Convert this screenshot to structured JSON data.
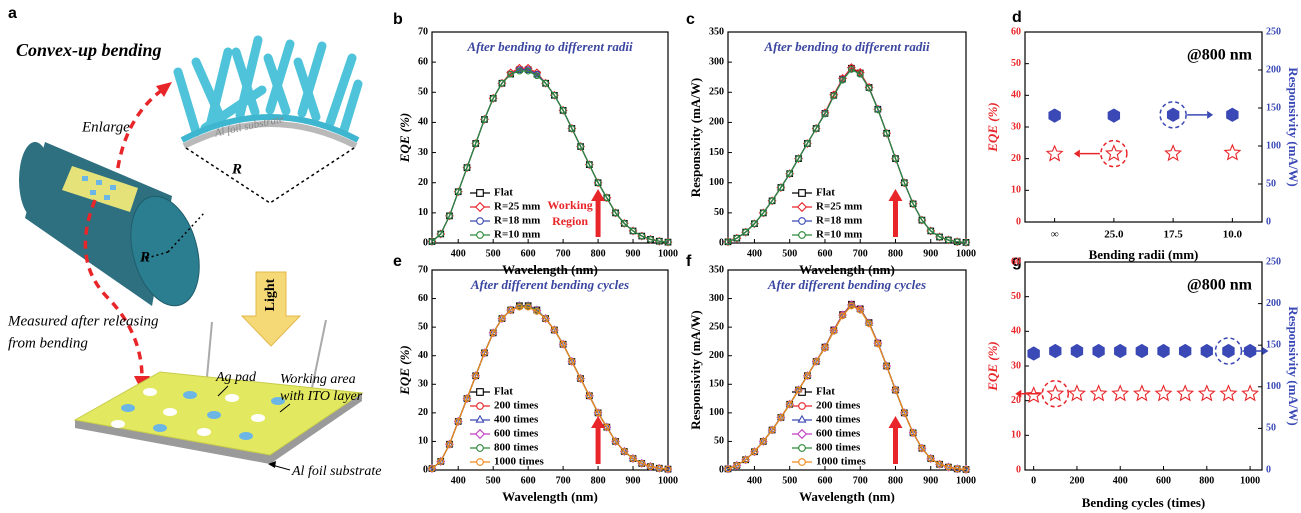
{
  "panel_a": {
    "letter": "a",
    "title": "Convex-up bending",
    "enlarge": "Enlarge",
    "substrate_top": "Al foil substrate",
    "radius_top": "R",
    "radius_cyl": "R",
    "light": "Light",
    "measured": [
      "Measured after releasing",
      "from bending"
    ],
    "ag_pad": "Ag pad",
    "working_area": [
      "Working area",
      "with ITO layer"
    ],
    "substrate_bottom": "Al foil substrate"
  },
  "chart_data": [
    {
      "panel": "b",
      "type": "line",
      "subtitle": "After bending to different radii",
      "x_label": "Wavelength (nm)",
      "y_label": "EQE (%)",
      "x": [
        325,
        350,
        375,
        400,
        425,
        450,
        475,
        500,
        525,
        550,
        575,
        600,
        625,
        650,
        675,
        700,
        725,
        750,
        775,
        800,
        825,
        850,
        875,
        900,
        925,
        950,
        975,
        1000
      ],
      "xlim": [
        325,
        1000
      ],
      "xticks": [
        400,
        500,
        600,
        700,
        800,
        900,
        1000
      ],
      "ylim": [
        0,
        70
      ],
      "yticks": [
        0,
        10,
        20,
        30,
        40,
        50,
        60,
        70
      ],
      "arrow_x": 800,
      "annotation": [
        "Working",
        "Region"
      ],
      "series": [
        {
          "name": "Flat",
          "color": "#000000",
          "marker": "square",
          "values": [
            0.5,
            3,
            9,
            17,
            25,
            33,
            41,
            48,
            53,
            56,
            57.5,
            57.5,
            56,
            53,
            49,
            44,
            38,
            32,
            26,
            20,
            15,
            10,
            6.5,
            4,
            2.3,
            1.2,
            0.6,
            0.3
          ]
        },
        {
          "name": "R=25 mm",
          "color": "#e8262a",
          "marker": "diamond",
          "values": [
            0.5,
            3,
            9,
            17,
            25,
            33,
            41,
            48,
            53,
            56.5,
            58,
            58,
            56.5,
            53,
            49,
            44,
            38,
            32,
            26,
            20,
            15,
            10,
            6.5,
            4,
            2.3,
            1.2,
            0.6,
            0.3
          ]
        },
        {
          "name": "R=18 mm",
          "color": "#3a49b5",
          "marker": "circle",
          "values": [
            0.5,
            3,
            9,
            17,
            25,
            33,
            41,
            48,
            53,
            56,
            57.5,
            57.5,
            56,
            53,
            49,
            44,
            38,
            32,
            26,
            20,
            15,
            10,
            6.5,
            4,
            2.3,
            1.2,
            0.6,
            0.3
          ]
        },
        {
          "name": "R=10 mm",
          "color": "#2a8a3a",
          "marker": "circle",
          "values": [
            0.5,
            3,
            9,
            17,
            25,
            33,
            41,
            48,
            53,
            56,
            57,
            57,
            55.5,
            53,
            49,
            44,
            38,
            32,
            26,
            20,
            15,
            10,
            6.5,
            4,
            2.3,
            1.2,
            0.6,
            0.3
          ]
        }
      ]
    },
    {
      "panel": "c",
      "type": "line",
      "subtitle": "After bending to different radii",
      "x_label": "Wavelength (nm)",
      "y_label": "Responsivity (mA/W)",
      "x": [
        325,
        350,
        375,
        400,
        425,
        450,
        475,
        500,
        525,
        550,
        575,
        600,
        625,
        650,
        675,
        700,
        725,
        750,
        775,
        800,
        825,
        850,
        875,
        900,
        925,
        950,
        975,
        1000
      ],
      "xlim": [
        325,
        1000
      ],
      "xticks": [
        400,
        500,
        600,
        700,
        800,
        900,
        1000
      ],
      "ylim": [
        0,
        350
      ],
      "yticks": [
        0,
        50,
        100,
        150,
        200,
        250,
        300,
        350
      ],
      "arrow_x": 800,
      "series": [
        {
          "name": "Flat",
          "color": "#000000",
          "marker": "square",
          "values": [
            2,
            8,
            18,
            32,
            50,
            70,
            92,
            115,
            140,
            165,
            190,
            215,
            245,
            272,
            290,
            282,
            258,
            222,
            182,
            140,
            100,
            65,
            38,
            20,
            10,
            5,
            2,
            1
          ]
        },
        {
          "name": "R=25 mm",
          "color": "#e8262a",
          "marker": "diamond",
          "values": [
            2,
            8,
            18,
            32,
            50,
            70,
            92,
            115,
            140,
            165,
            190,
            216,
            246,
            273,
            291,
            283,
            258,
            222,
            182,
            140,
            100,
            65,
            38,
            20,
            10,
            5,
            2,
            1
          ]
        },
        {
          "name": "R=18 mm",
          "color": "#3a49b5",
          "marker": "circle",
          "values": [
            2,
            8,
            18,
            32,
            50,
            70,
            92,
            115,
            140,
            165,
            190,
            215,
            244,
            271,
            288,
            280,
            257,
            222,
            182,
            140,
            100,
            65,
            38,
            20,
            10,
            5,
            2,
            1
          ]
        },
        {
          "name": "R=10 mm",
          "color": "#2a8a3a",
          "marker": "circle",
          "values": [
            2,
            8,
            18,
            32,
            50,
            70,
            92,
            115,
            140,
            165,
            190,
            214,
            244,
            270,
            288,
            280,
            257,
            221,
            182,
            140,
            100,
            65,
            38,
            20,
            10,
            5,
            2,
            1
          ]
        }
      ]
    },
    {
      "panel": "d",
      "type": "scatter",
      "annotation": "@800 nm",
      "x_label": "Bending radii (mm)",
      "y_label": "EQE (%)",
      "y2_label": "Responsivity (mA/W)",
      "categories": [
        "∞",
        "25.0",
        "17.5",
        "10.0"
      ],
      "ylim": [
        0,
        60
      ],
      "yticks": [
        0,
        10,
        20,
        30,
        40,
        50,
        60
      ],
      "y2lim": [
        0,
        250
      ],
      "y2ticks": [
        0,
        50,
        100,
        150,
        200,
        250
      ],
      "series": [
        {
          "color": "#e8262a",
          "marker": "star",
          "values": [
            21.5,
            21.6,
            21.6,
            21.8
          ]
        },
        {
          "color": "#3a49b5",
          "marker": "hexagon",
          "axis": "y2",
          "values": [
            140,
            140,
            141,
            141
          ]
        }
      ]
    },
    {
      "panel": "e",
      "type": "line",
      "subtitle": "After different bending cycles",
      "x_label": "Wavelength (nm)",
      "y_label": "EQE (%)",
      "x": [
        325,
        350,
        375,
        400,
        425,
        450,
        475,
        500,
        525,
        550,
        575,
        600,
        625,
        650,
        675,
        700,
        725,
        750,
        775,
        800,
        825,
        850,
        875,
        900,
        925,
        950,
        975,
        1000
      ],
      "xlim": [
        325,
        1000
      ],
      "xticks": [
        400,
        500,
        600,
        700,
        800,
        900,
        1000
      ],
      "ylim": [
        0,
        70
      ],
      "yticks": [
        0,
        10,
        20,
        30,
        40,
        50,
        60,
        70
      ],
      "arrow_x": 800,
      "series": [
        {
          "name": "Flat",
          "color": "#000000",
          "marker": "square",
          "values": [
            0.5,
            3,
            9,
            17,
            25,
            33,
            41,
            48,
            53,
            56,
            57.5,
            57.5,
            56,
            53,
            49,
            44,
            38,
            32,
            26,
            20,
            15,
            10,
            6.5,
            4,
            2.3,
            1.2,
            0.6,
            0.3
          ]
        },
        {
          "name": "200 times",
          "color": "#e8262a",
          "marker": "circle",
          "values": [
            0.5,
            3,
            9,
            17,
            25,
            33,
            41,
            48,
            53,
            56,
            57.5,
            57.5,
            56,
            53,
            49,
            44,
            38,
            32,
            26,
            20,
            15,
            10,
            6.5,
            4,
            2.3,
            1.2,
            0.6,
            0.3
          ]
        },
        {
          "name": "400 times",
          "color": "#3a49b5",
          "marker": "triangle",
          "values": [
            0.5,
            3,
            9,
            17,
            25,
            33,
            41,
            48,
            53,
            56,
            57.5,
            57.5,
            56,
            53,
            49,
            44,
            38,
            32,
            26,
            20,
            15,
            10,
            6.5,
            4,
            2.3,
            1.2,
            0.6,
            0.3
          ]
        },
        {
          "name": "600 times",
          "color": "#c23cc2",
          "marker": "diamond",
          "values": [
            0.5,
            3,
            9,
            17,
            25,
            33,
            41,
            48,
            53,
            56,
            57.3,
            57.3,
            55.8,
            53,
            49,
            44,
            38,
            32,
            26,
            20,
            15,
            10,
            6.5,
            4,
            2.3,
            1.2,
            0.6,
            0.3
          ]
        },
        {
          "name": "800 times",
          "color": "#2a8a3a",
          "marker": "circle",
          "values": [
            0.5,
            3,
            9,
            17,
            25,
            33,
            41,
            48,
            53,
            56,
            57.3,
            57.3,
            55.8,
            53,
            49,
            44,
            38,
            32,
            26,
            20,
            15,
            10,
            6.5,
            4,
            2.3,
            1.2,
            0.6,
            0.3
          ]
        },
        {
          "name": "1000 times",
          "color": "#f08a1c",
          "marker": "circle",
          "values": [
            0.5,
            3,
            9,
            17,
            25,
            33,
            41,
            48,
            53,
            56,
            57,
            57,
            55.5,
            53,
            49,
            44,
            38,
            32,
            26,
            20,
            15,
            10,
            6.5,
            4,
            2.3,
            1.2,
            0.6,
            0.3
          ]
        }
      ]
    },
    {
      "panel": "f",
      "type": "line",
      "subtitle": "After different bending cycles",
      "x_label": "Wavelength (nm)",
      "y_label": "Responsivity (mA/W)",
      "x": [
        325,
        350,
        375,
        400,
        425,
        450,
        475,
        500,
        525,
        550,
        575,
        600,
        625,
        650,
        675,
        700,
        725,
        750,
        775,
        800,
        825,
        850,
        875,
        900,
        925,
        950,
        975,
        1000
      ],
      "xlim": [
        325,
        1000
      ],
      "xticks": [
        400,
        500,
        600,
        700,
        800,
        900,
        1000
      ],
      "ylim": [
        0,
        350
      ],
      "yticks": [
        0,
        50,
        100,
        150,
        200,
        250,
        300,
        350
      ],
      "arrow_x": 800,
      "series": [
        {
          "name": "Flat",
          "color": "#000000",
          "marker": "square",
          "values": [
            2,
            8,
            18,
            32,
            50,
            70,
            92,
            115,
            140,
            165,
            190,
            215,
            245,
            272,
            290,
            282,
            258,
            222,
            182,
            140,
            100,
            65,
            38,
            20,
            10,
            5,
            2,
            1
          ]
        },
        {
          "name": "200 times",
          "color": "#e8262a",
          "marker": "circle",
          "values": [
            2,
            8,
            18,
            32,
            50,
            70,
            92,
            115,
            140,
            165,
            190,
            215,
            245,
            272,
            290,
            282,
            258,
            222,
            182,
            140,
            100,
            65,
            38,
            20,
            10,
            5,
            2,
            1
          ]
        },
        {
          "name": "400 times",
          "color": "#3a49b5",
          "marker": "triangle",
          "values": [
            2,
            8,
            18,
            32,
            50,
            70,
            92,
            115,
            140,
            165,
            190,
            215,
            244,
            271,
            289,
            281,
            257,
            222,
            182,
            140,
            100,
            65,
            38,
            20,
            10,
            5,
            2,
            1
          ]
        },
        {
          "name": "600 times",
          "color": "#c23cc2",
          "marker": "diamond",
          "values": [
            2,
            8,
            18,
            32,
            50,
            70,
            92,
            115,
            140,
            165,
            190,
            214,
            244,
            271,
            289,
            281,
            257,
            222,
            182,
            140,
            100,
            65,
            38,
            20,
            10,
            5,
            2,
            1
          ]
        },
        {
          "name": "800 times",
          "color": "#2a8a3a",
          "marker": "circle",
          "values": [
            2,
            8,
            18,
            32,
            50,
            70,
            92,
            115,
            140,
            165,
            190,
            214,
            243,
            270,
            288,
            280,
            257,
            221,
            182,
            140,
            100,
            65,
            38,
            20,
            10,
            5,
            2,
            1
          ]
        },
        {
          "name": "1000 times",
          "color": "#f08a1c",
          "marker": "circle",
          "values": [
            2,
            8,
            18,
            32,
            50,
            70,
            92,
            115,
            140,
            165,
            190,
            214,
            243,
            270,
            287,
            280,
            256,
            221,
            182,
            140,
            100,
            65,
            38,
            20,
            10,
            5,
            2,
            1
          ]
        }
      ]
    },
    {
      "panel": "g",
      "type": "scatter",
      "annotation": "@800 nm",
      "x_label": "Bending cycles (times)",
      "y_label": "EQE (%)",
      "y2_label": "Responsivity (mA/W)",
      "x": [
        0,
        100,
        200,
        300,
        400,
        500,
        600,
        700,
        800,
        900,
        1000
      ],
      "xlim": [
        -40,
        1055
      ],
      "xticks": [
        0,
        200,
        400,
        600,
        800,
        1000
      ],
      "ylim": [
        0,
        60
      ],
      "yticks": [
        0,
        10,
        20,
        30,
        40,
        50,
        60
      ],
      "y2lim": [
        0,
        250
      ],
      "y2ticks": [
        0,
        50,
        100,
        150,
        200,
        250
      ],
      "series": [
        {
          "color": "#e8262a",
          "marker": "star",
          "values": [
            21.5,
            22,
            22,
            22,
            22,
            22,
            22,
            22,
            22,
            22,
            22
          ]
        },
        {
          "color": "#3a49b5",
          "marker": "hexagon",
          "axis": "y2",
          "values": [
            140,
            143,
            143,
            143,
            143,
            143,
            143,
            143,
            143,
            143,
            143
          ]
        }
      ]
    }
  ]
}
